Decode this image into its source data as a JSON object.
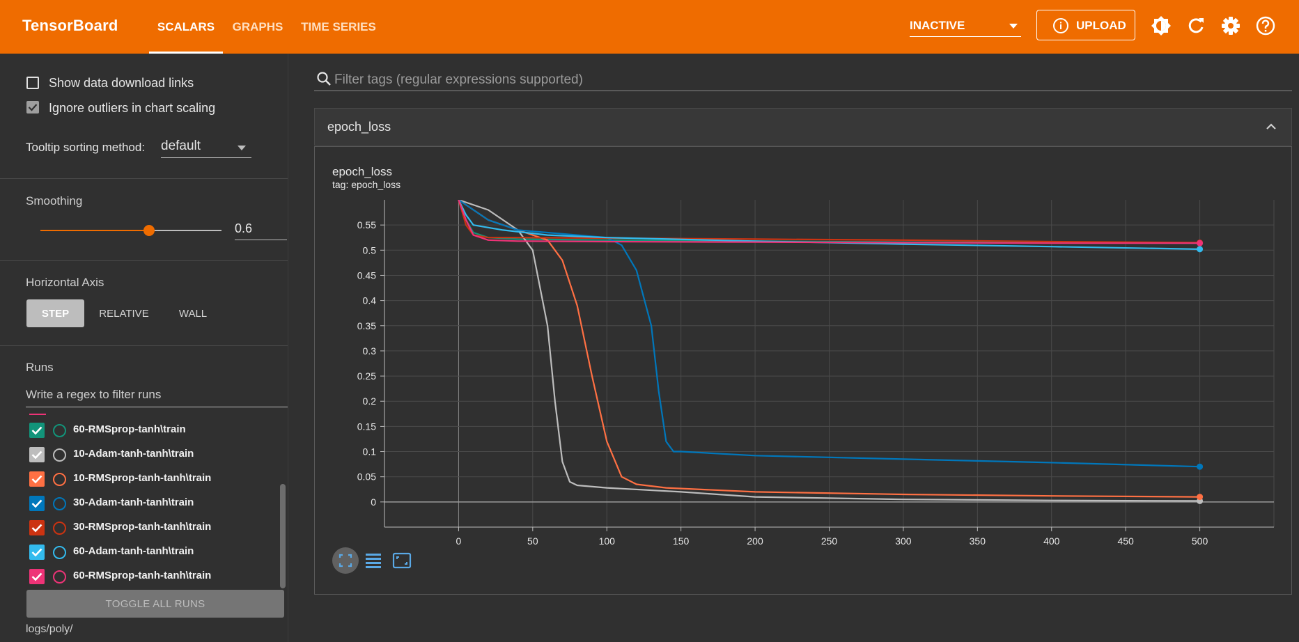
{
  "header": {
    "brand": "TensorBoard",
    "tabs": [
      {
        "label": "SCALARS",
        "active": true
      },
      {
        "label": "GRAPHS",
        "active": false
      },
      {
        "label": "TIME SERIES",
        "active": false
      }
    ],
    "dashboard_select": "INACTIVE",
    "upload_label": "UPLOAD",
    "icons": [
      "theme-toggle-icon",
      "reload-icon",
      "settings-icon",
      "help-icon"
    ],
    "bar_color": "#ef6c00"
  },
  "sidebar": {
    "show_download_links": {
      "label": "Show data download links",
      "checked": false
    },
    "ignore_outliers": {
      "label": "Ignore outliers in chart scaling",
      "checked": true
    },
    "tooltip_sorting": {
      "label": "Tooltip sorting method:",
      "value": "default"
    },
    "smoothing": {
      "label": "Smoothing",
      "value": "0.6",
      "fraction": 0.6
    },
    "horizontal_axis": {
      "label": "Horizontal Axis",
      "options": [
        {
          "label": "STEP",
          "active": true
        },
        {
          "label": "RELATIVE",
          "active": false
        },
        {
          "label": "WALL",
          "active": false
        }
      ]
    },
    "runs": {
      "label": "Runs",
      "filter_placeholder": "Write a regex to filter runs",
      "items": [
        {
          "label": "60-RMSprop-tanh\\train",
          "color": "#12947a",
          "checked": true
        },
        {
          "label": "10-Adam-tanh-tanh\\train",
          "color": "#bdbdbd",
          "checked": true
        },
        {
          "label": "10-RMSprop-tanh-tanh\\train",
          "color": "#ff7043",
          "checked": true
        },
        {
          "label": "30-Adam-tanh-tanh\\train",
          "color": "#0077bb",
          "checked": true
        },
        {
          "label": "30-RMSprop-tanh-tanh\\train",
          "color": "#cc3311",
          "checked": true
        },
        {
          "label": "60-Adam-tanh-tanh\\train",
          "color": "#33bbee",
          "checked": true
        },
        {
          "label": "60-RMSprop-tanh-tanh\\train",
          "color": "#ee3377",
          "checked": true
        }
      ],
      "toggle_all": "TOGGLE ALL RUNS",
      "logdir": "logs/poly/"
    }
  },
  "main": {
    "filter_placeholder": "Filter tags (regular expressions supported)",
    "card_title": "epoch_loss",
    "chart_title": "epoch_loss",
    "chart_subtitle": "tag: epoch_loss"
  },
  "chart_data": {
    "type": "line",
    "title": "epoch_loss",
    "subtitle": "tag: epoch_loss",
    "xlabel": "",
    "ylabel": "",
    "x_ticks": [
      0,
      50,
      100,
      150,
      200,
      250,
      300,
      350,
      400,
      450,
      500
    ],
    "y_ticks": [
      0,
      0.05,
      0.1,
      0.15,
      0.2,
      0.25,
      0.3,
      0.35,
      0.4,
      0.45,
      0.5,
      0.55
    ],
    "xlim": [
      -50,
      550
    ],
    "ylim": [
      -0.05,
      0.6
    ],
    "grid": true,
    "series": [
      {
        "color": "#12947a",
        "x": [
          0,
          5,
          10,
          20,
          40,
          100,
          200,
          300,
          400,
          500
        ],
        "values": [
          0.6,
          0.56,
          0.535,
          0.525,
          0.522,
          0.52,
          0.518,
          0.516,
          0.515,
          0.514
        ]
      },
      {
        "color": "#bdbdbd",
        "x": [
          0,
          20,
          40,
          50,
          60,
          65,
          70,
          75,
          80,
          100,
          150,
          200,
          300,
          400,
          500
        ],
        "values": [
          0.6,
          0.58,
          0.54,
          0.5,
          0.35,
          0.2,
          0.08,
          0.04,
          0.033,
          0.028,
          0.02,
          0.01,
          0.005,
          0.003,
          0.002
        ]
      },
      {
        "color": "#ff7043",
        "x": [
          0,
          20,
          50,
          60,
          70,
          80,
          90,
          100,
          110,
          120,
          140,
          200,
          300,
          400,
          500
        ],
        "values": [
          0.6,
          0.56,
          0.53,
          0.52,
          0.48,
          0.39,
          0.25,
          0.12,
          0.05,
          0.035,
          0.028,
          0.02,
          0.015,
          0.012,
          0.01
        ]
      },
      {
        "color": "#0077bb",
        "x": [
          0,
          20,
          40,
          80,
          100,
          110,
          120,
          130,
          135,
          140,
          145,
          150,
          200,
          300,
          400,
          500
        ],
        "values": [
          0.6,
          0.56,
          0.54,
          0.53,
          0.525,
          0.51,
          0.46,
          0.35,
          0.22,
          0.12,
          0.1,
          0.1,
          0.092,
          0.085,
          0.078,
          0.07
        ]
      },
      {
        "color": "#cc3311",
        "x": [
          0,
          5,
          10,
          20,
          40,
          100,
          200,
          300,
          400,
          500
        ],
        "values": [
          0.6,
          0.55,
          0.53,
          0.525,
          0.525,
          0.524,
          0.522,
          0.52,
          0.517,
          0.515
        ]
      },
      {
        "color": "#33bbee",
        "x": [
          0,
          5,
          10,
          30,
          60,
          100,
          200,
          300,
          400,
          500
        ],
        "values": [
          0.6,
          0.57,
          0.55,
          0.54,
          0.53,
          0.525,
          0.518,
          0.512,
          0.507,
          0.502
        ]
      },
      {
        "color": "#ee3377",
        "x": [
          0,
          5,
          10,
          20,
          40,
          100,
          200,
          300,
          400,
          500
        ],
        "values": [
          0.6,
          0.56,
          0.53,
          0.52,
          0.518,
          0.517,
          0.516,
          0.515,
          0.514,
          0.514
        ]
      }
    ]
  }
}
